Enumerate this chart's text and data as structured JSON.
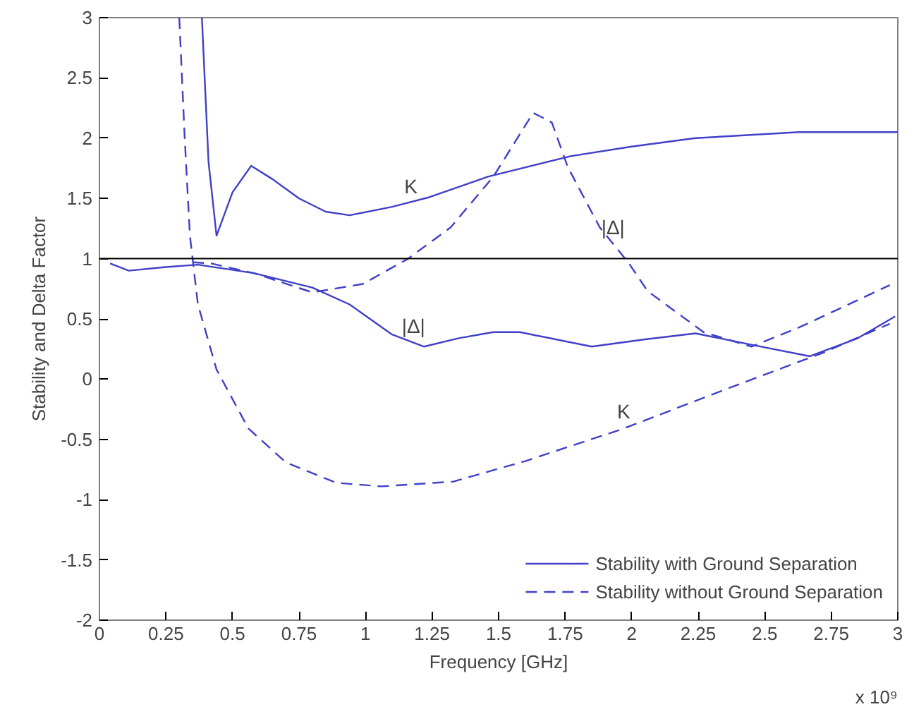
{
  "chart_data": {
    "type": "line",
    "xlabel": "Frequency [GHz]",
    "ylabel": "Stability and Delta Factor",
    "xlim": [
      0,
      3
    ],
    "ylim": [
      -2,
      3
    ],
    "xticks": [
      0,
      0.25,
      0.5,
      0.75,
      1,
      1.25,
      1.5,
      1.75,
      2,
      2.25,
      2.5,
      2.75,
      3
    ],
    "yticks": [
      -2,
      -1.5,
      -1,
      -0.5,
      0,
      0.5,
      1,
      1.5,
      2,
      2.5,
      3
    ],
    "grid": false,
    "legend": "bottom right",
    "ref_lines": [
      {
        "axis": "y",
        "value": 1,
        "color": "#000000"
      }
    ],
    "annotations": [
      {
        "text": "K",
        "x": 1.17,
        "y": 1.46
      },
      {
        "text": "|Δ|",
        "x": 1.18,
        "y": 0.3
      },
      {
        "text": "|Δ|",
        "x": 1.93,
        "y": 1.12
      },
      {
        "text": "K",
        "x": 1.97,
        "y": -0.41
      },
      "x 10⁹"
    ],
    "series": [
      {
        "name": "Stability with Ground Separation",
        "color": "#4040c8",
        "line_style": "solid",
        "x": [
          0.385,
          0.41,
          0.44,
          0.5,
          0.57,
          0.65,
          0.75,
          0.85,
          0.94,
          1.1,
          1.24,
          1.46,
          1.77,
          2.0,
          2.24,
          2.63,
          3.0
        ],
        "values": [
          3.0,
          1.8,
          1.19,
          1.55,
          1.77,
          1.66,
          1.5,
          1.39,
          1.36,
          1.43,
          1.51,
          1.68,
          1.85,
          1.93,
          2.0,
          2.05,
          2.05
        ]
      },
      {
        "color": "#4040c8",
        "line_style": "solid",
        "x": [
          0.04,
          0.11,
          0.25,
          0.37,
          0.58,
          0.8,
          0.94,
          1.1,
          1.22,
          1.35,
          1.48,
          1.58,
          1.85,
          2.05,
          2.24,
          2.44,
          2.67,
          2.85,
          2.99
        ],
        "values": [
          0.96,
          0.9,
          0.93,
          0.95,
          0.88,
          0.76,
          0.62,
          0.37,
          0.27,
          0.34,
          0.39,
          0.39,
          0.27,
          0.33,
          0.38,
          0.29,
          0.19,
          0.34,
          0.52
        ]
      },
      {
        "name": "Stability without Ground Separation",
        "color": "#4040c8",
        "line_style": "dashed",
        "x": [
          0.3,
          0.32,
          0.34,
          0.37,
          0.44,
          0.56,
          0.7,
          0.89,
          1.06,
          1.33,
          1.6,
          1.97,
          2.37,
          2.72,
          2.97
        ],
        "values": [
          3.0,
          2.02,
          1.19,
          0.62,
          0.08,
          -0.41,
          -0.69,
          -0.86,
          -0.89,
          -0.85,
          -0.68,
          -0.41,
          -0.07,
          0.22,
          0.46
        ]
      },
      {
        "color": "#4040c8",
        "line_style": "dashed",
        "x": [
          0.35,
          0.42,
          0.58,
          0.8,
          0.99,
          1.16,
          1.32,
          1.48,
          1.63,
          1.7,
          1.76,
          1.88,
          1.99,
          2.06,
          2.27,
          2.45,
          2.63,
          2.97
        ],
        "values": [
          0.97,
          0.96,
          0.88,
          0.72,
          0.79,
          1.0,
          1.26,
          1.68,
          2.21,
          2.13,
          1.76,
          1.26,
          0.96,
          0.73,
          0.39,
          0.27,
          0.43,
          0.78
        ]
      }
    ]
  }
}
